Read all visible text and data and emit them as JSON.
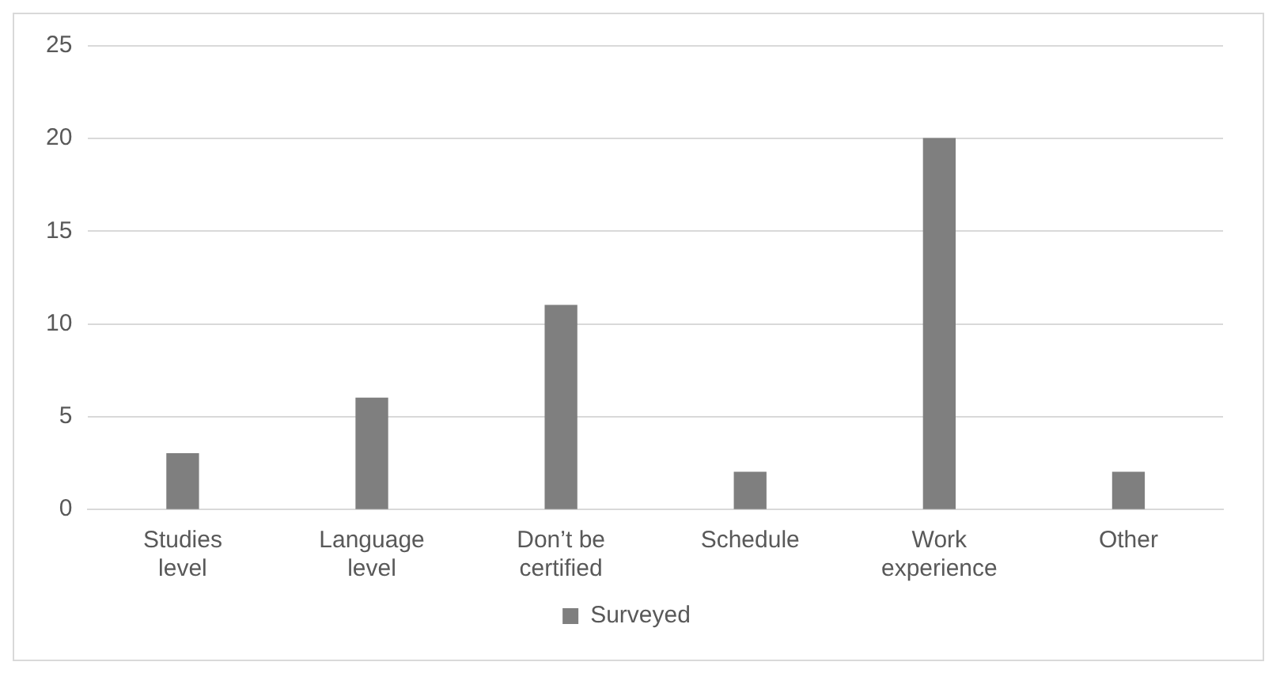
{
  "chart_data": {
    "type": "bar",
    "categories": [
      "Studies level",
      "Language level",
      "Don’t be certified",
      "Schedule",
      "Work experience",
      "Other"
    ],
    "series": [
      {
        "name": "Surveyed",
        "color": "#7f7f7f",
        "values": [
          3,
          6,
          11,
          2,
          20,
          2
        ]
      }
    ],
    "ylim": [
      0,
      25
    ],
    "yticks": [
      0,
      5,
      10,
      15,
      20,
      25
    ],
    "grid": "y",
    "legend": "bottom"
  }
}
